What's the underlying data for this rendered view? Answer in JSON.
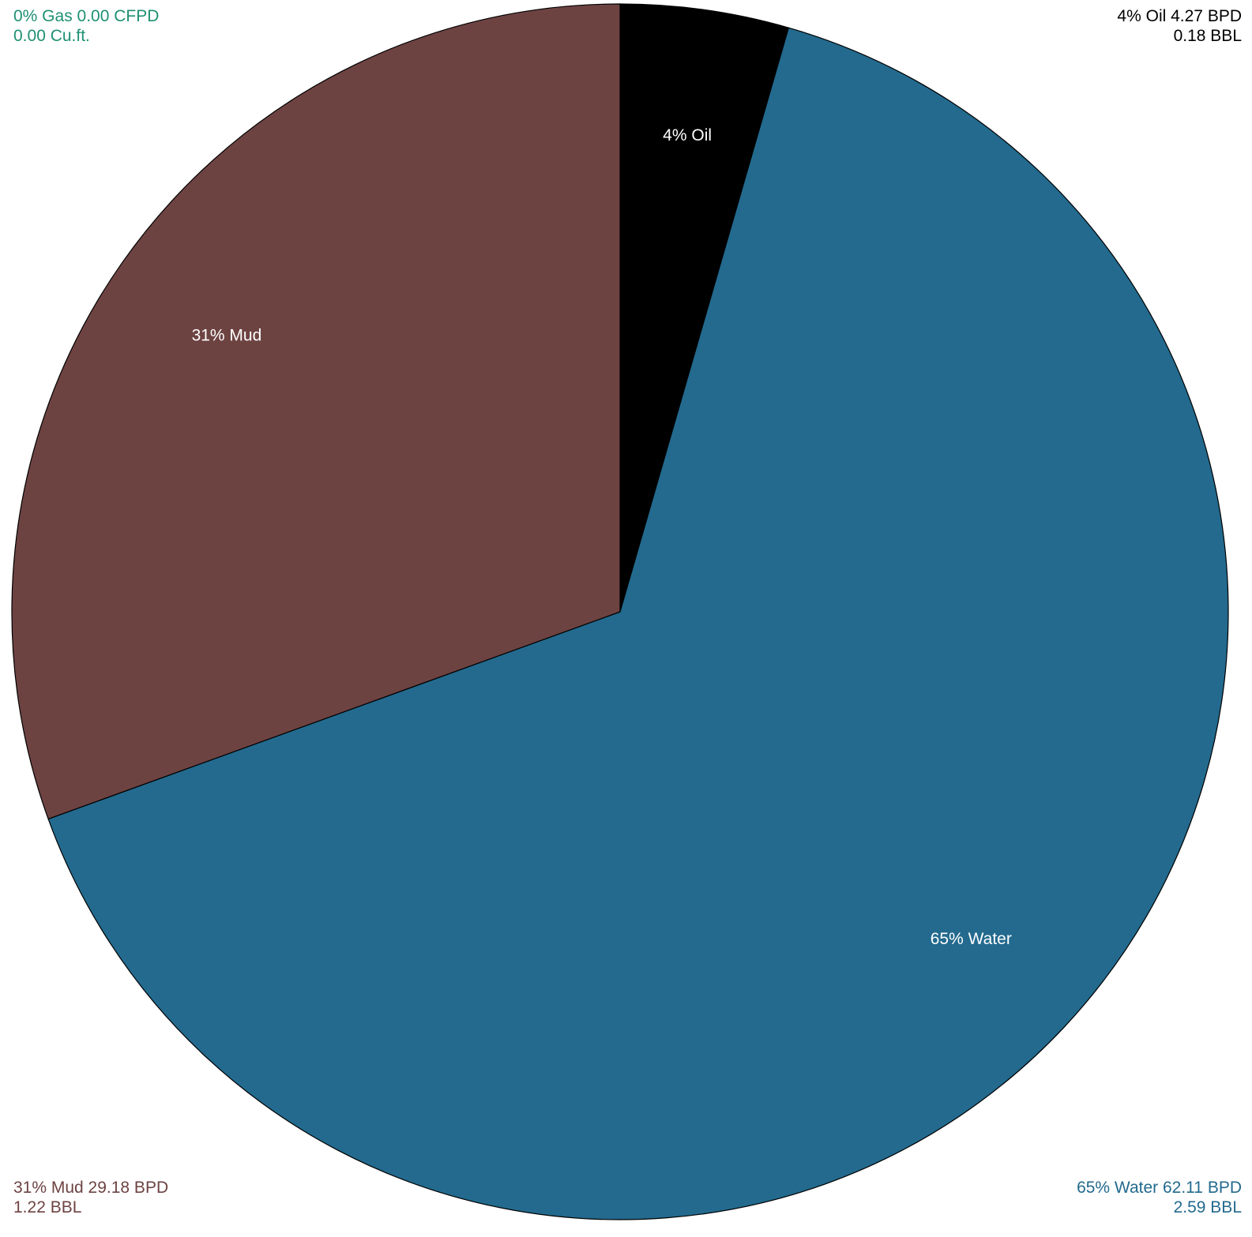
{
  "chart_data": {
    "type": "pie",
    "slices": [
      {
        "name": "Oil",
        "percent": 4,
        "percent_label": "4%",
        "rate": "4.27 BPD",
        "volume": "0.18 BBL",
        "value": 4.27,
        "color": "#000000",
        "inner_label": "4% Oil",
        "corner_line1": "4% Oil 4.27 BPD",
        "corner_line2": "0.18 BBL"
      },
      {
        "name": "Water",
        "percent": 65,
        "percent_label": "65%",
        "rate": "62.11 BPD",
        "volume": "2.59 BBL",
        "value": 62.11,
        "color": "#236A8E",
        "inner_label": "65% Water",
        "corner_line1": "65% Water 62.11 BPD",
        "corner_line2": "2.59 BBL"
      },
      {
        "name": "Mud",
        "percent": 31,
        "percent_label": "31%",
        "rate": "29.18 BPD",
        "volume": "1.22 BBL",
        "value": 29.18,
        "color": "#6D4342",
        "inner_label": "31% Mud",
        "corner_line1": "31% Mud 29.18 BPD",
        "corner_line2": "1.22 BBL"
      },
      {
        "name": "Gas",
        "percent": 0,
        "percent_label": "0%",
        "rate": "0.00 CFPD",
        "volume": "0.00 Cu.ft.",
        "value": 0,
        "color": "#1E9073",
        "inner_label": "",
        "corner_line1": "0% Gas 0.00 CFPD",
        "corner_line2": "0.00 Cu.ft."
      }
    ],
    "start_angle": "12 o'clock",
    "direction": "clockwise",
    "slice_outline_color": "#000000"
  },
  "corners": {
    "top_left": {
      "line1": "0% Gas 0.00 CFPD",
      "line2": "0.00 Cu.ft.",
      "color": "#1E9073"
    },
    "top_right": {
      "line1": "4% Oil 4.27 BPD",
      "line2": "0.18 BBL",
      "color": "#000000"
    },
    "bottom_left": {
      "line1": "31% Mud 29.18 BPD",
      "line2": "1.22 BBL",
      "color": "#6D4342"
    },
    "bottom_right": {
      "line1": "65% Water 62.11 BPD",
      "line2": "2.59 BBL",
      "color": "#236A8E"
    }
  }
}
